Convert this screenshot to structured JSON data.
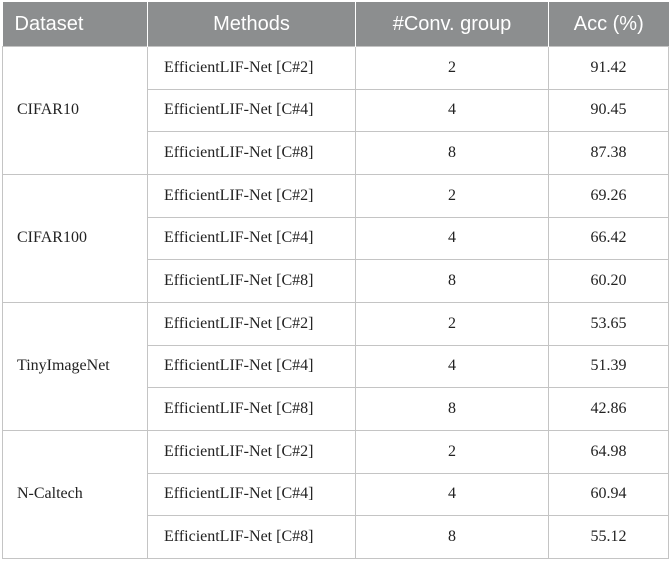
{
  "table": {
    "headers": [
      "Dataset",
      "Methods",
      "#Conv. group",
      "Acc (%)"
    ],
    "groups": [
      {
        "dataset": "CIFAR10",
        "rows": [
          {
            "method": "EfficientLIF-Net [C#2]",
            "groups": "2",
            "acc": "91.42"
          },
          {
            "method": "EfficientLIF-Net [C#4]",
            "groups": "4",
            "acc": "90.45"
          },
          {
            "method": "EfficientLIF-Net [C#8]",
            "groups": "8",
            "acc": "87.38"
          }
        ]
      },
      {
        "dataset": "CIFAR100",
        "rows": [
          {
            "method": "EfficientLIF-Net [C#2]",
            "groups": "2",
            "acc": "69.26"
          },
          {
            "method": "EfficientLIF-Net [C#4]",
            "groups": "4",
            "acc": "66.42"
          },
          {
            "method": "EfficientLIF-Net [C#8]",
            "groups": "8",
            "acc": "60.20"
          }
        ]
      },
      {
        "dataset": "TinyImageNet",
        "rows": [
          {
            "method": "EfficientLIF-Net [C#2]",
            "groups": "2",
            "acc": "53.65"
          },
          {
            "method": "EfficientLIF-Net [C#4]",
            "groups": "4",
            "acc": "51.39"
          },
          {
            "method": "EfficientLIF-Net [C#8]",
            "groups": "8",
            "acc": "42.86"
          }
        ]
      },
      {
        "dataset": "N-Caltech",
        "rows": [
          {
            "method": "EfficientLIF-Net [C#2]",
            "groups": "2",
            "acc": "64.98"
          },
          {
            "method": "EfficientLIF-Net [C#4]",
            "groups": "4",
            "acc": "60.94"
          },
          {
            "method": "EfficientLIF-Net [C#8]",
            "groups": "8",
            "acc": "55.12"
          }
        ]
      }
    ]
  },
  "colors": {
    "header_bg": "#8c8e8f",
    "header_text": "#ffffff",
    "border": "#c4c4c4"
  }
}
